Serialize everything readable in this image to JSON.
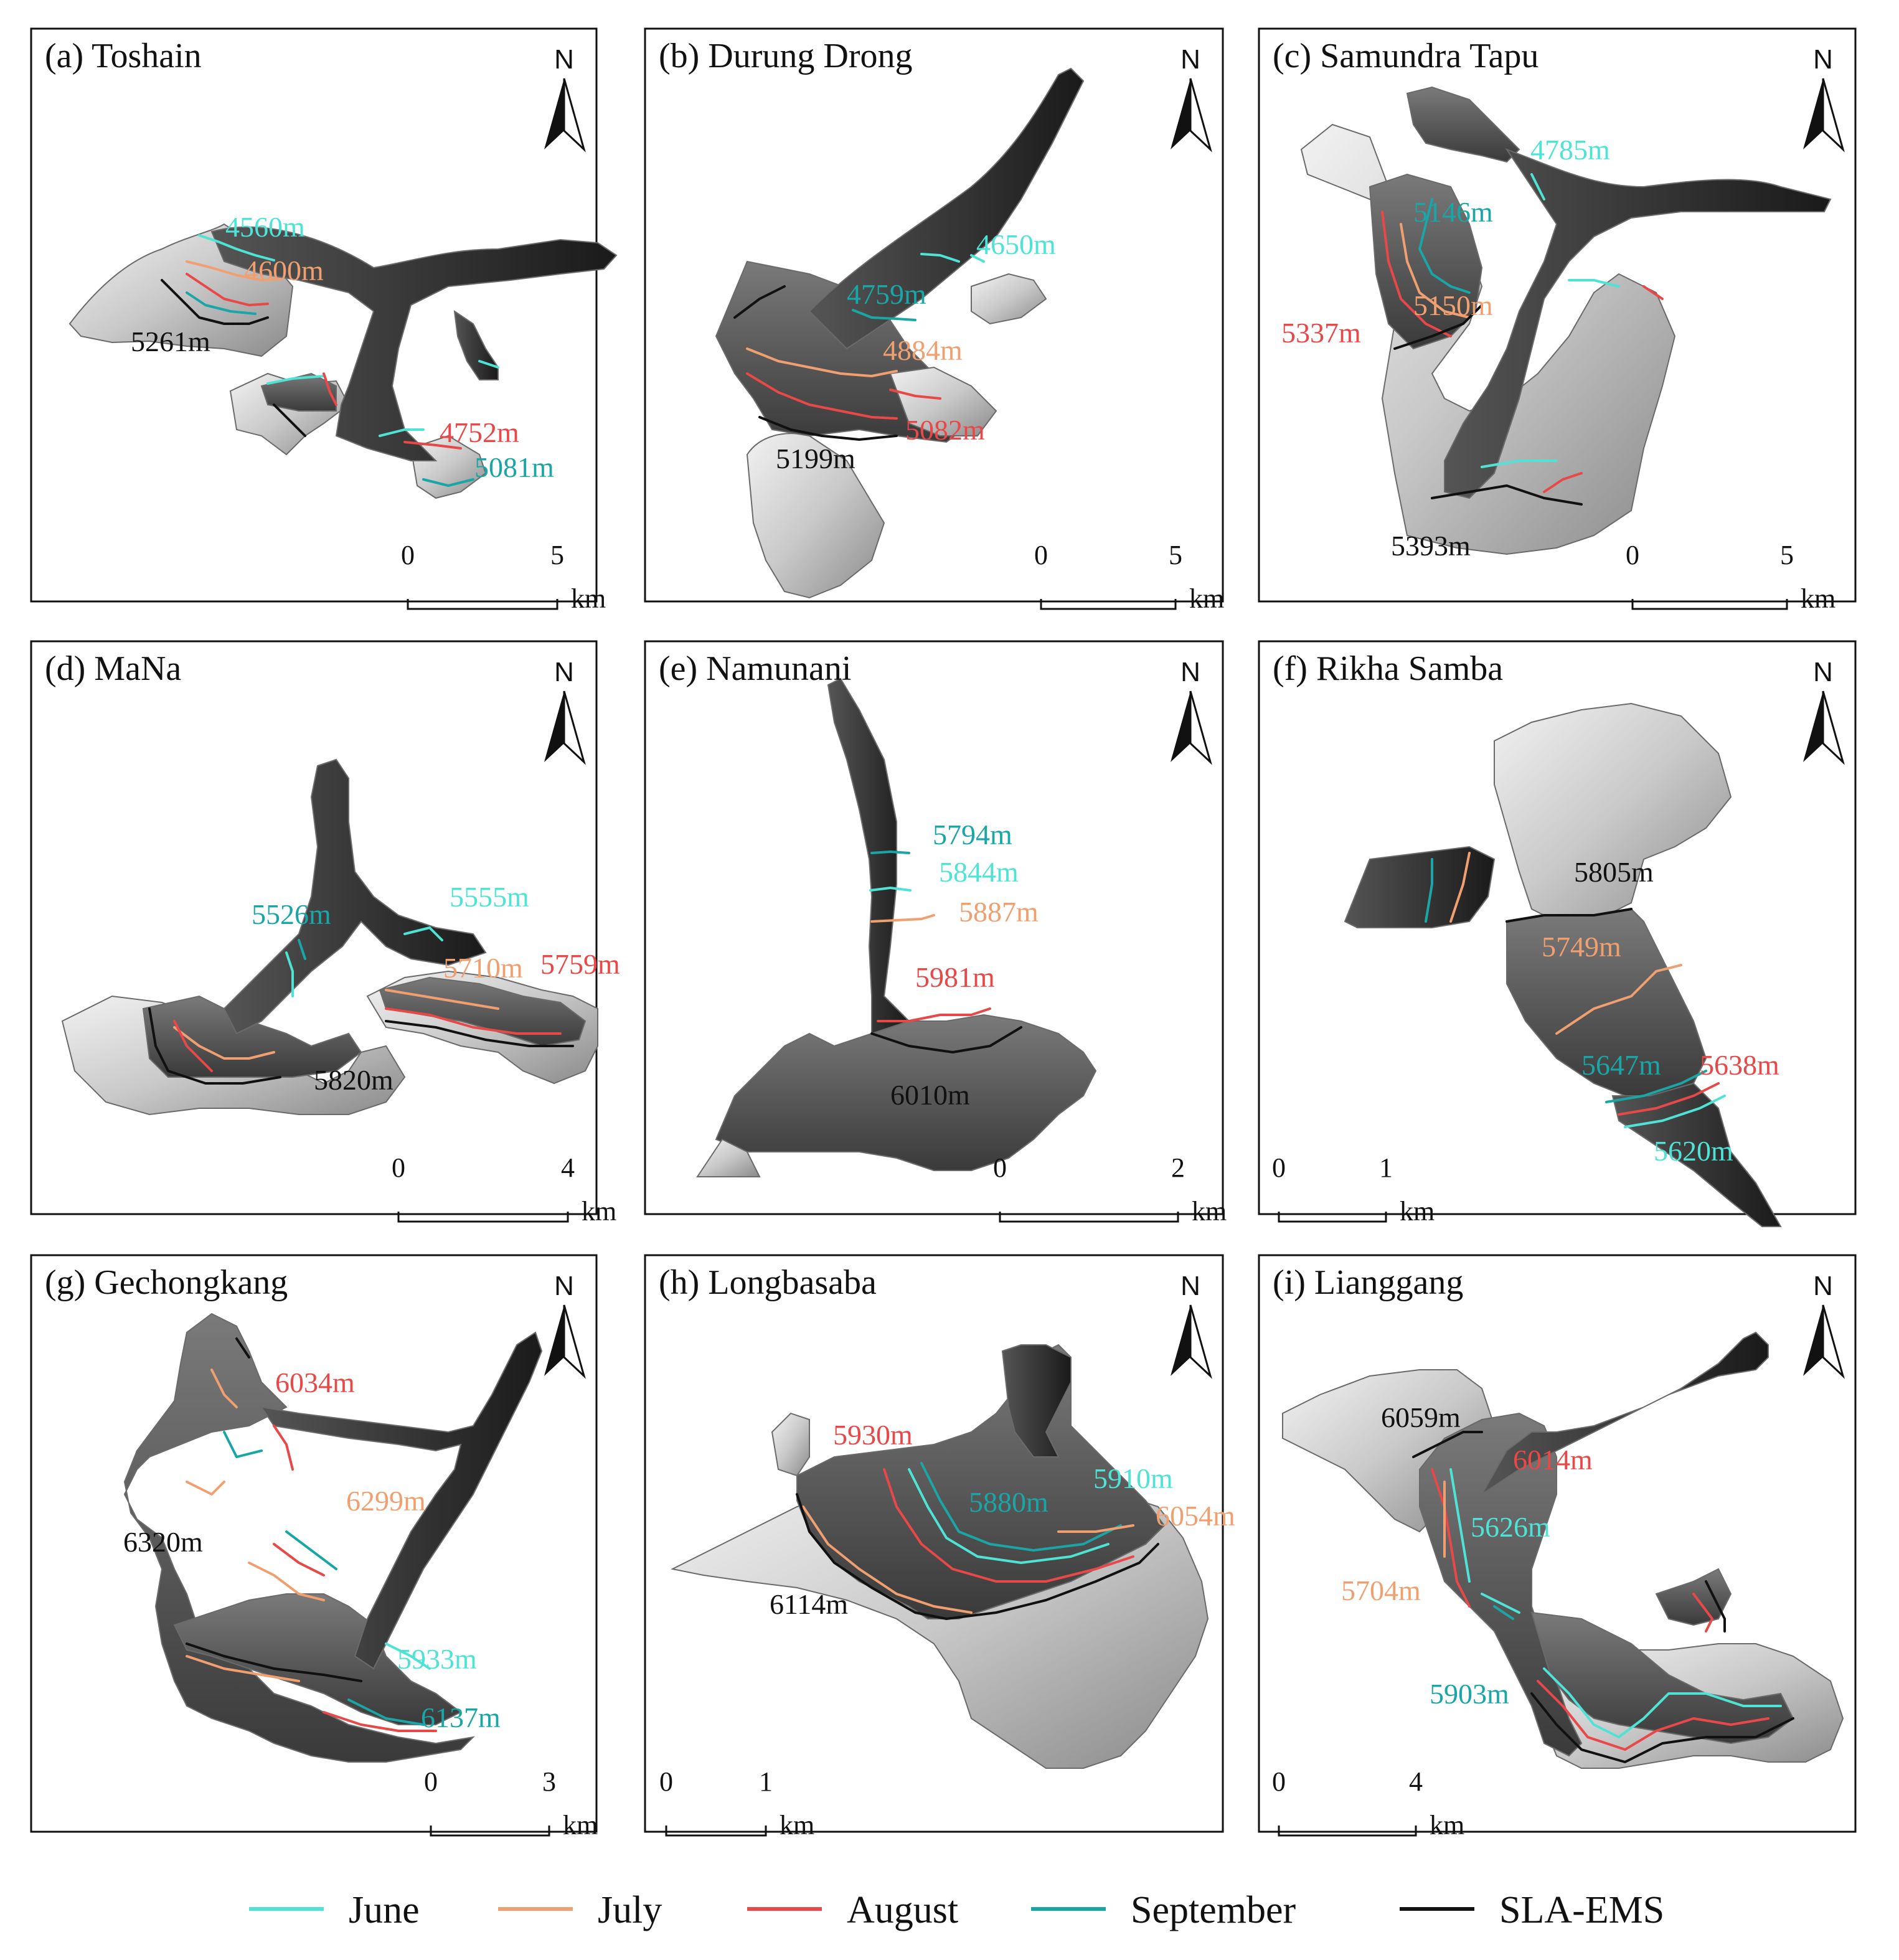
{
  "colors": {
    "June": "#4fe3d6",
    "July": "#f0a070",
    "August": "#e84848",
    "September": "#1aa6a6",
    "SLA-EMS": "#111111"
  },
  "north_label": "N",
  "scale_unit": "km",
  "legend": [
    {
      "label": "June",
      "color": "#4fe3d6"
    },
    {
      "label": "July",
      "color": "#f0a070"
    },
    {
      "label": "August",
      "color": "#e84848"
    },
    {
      "label": "September",
      "color": "#1aa6a6"
    },
    {
      "label": "SLA-EMS",
      "color": "#111111"
    }
  ],
  "panels": [
    {
      "title": "(a) Toshain",
      "scale": [
        "0",
        "5"
      ],
      "labels": [
        {
          "text": "4560m",
          "series": "June"
        },
        {
          "text": "4600m",
          "series": "July"
        },
        {
          "text": "5261m",
          "series": "SLA-EMS"
        },
        {
          "text": "4752m",
          "series": "August"
        },
        {
          "text": "5081m",
          "series": "September"
        }
      ]
    },
    {
      "title": "(b) Durung Drong",
      "scale": [
        "0",
        "5"
      ],
      "labels": [
        {
          "text": "4650m",
          "series": "June"
        },
        {
          "text": "4759m",
          "series": "September"
        },
        {
          "text": "4884m",
          "series": "July"
        },
        {
          "text": "5082m",
          "series": "August"
        },
        {
          "text": "5199m",
          "series": "SLA-EMS"
        }
      ]
    },
    {
      "title": "(c) Samundra Tapu",
      "scale": [
        "0",
        "5"
      ],
      "labels": [
        {
          "text": "4785m",
          "series": "June"
        },
        {
          "text": "5146m",
          "series": "September"
        },
        {
          "text": "5150m",
          "series": "July"
        },
        {
          "text": "5337m",
          "series": "August"
        },
        {
          "text": "5393m",
          "series": "SLA-EMS"
        }
      ]
    },
    {
      "title": "(d) MaNa",
      "scale": [
        "0",
        "4"
      ],
      "labels": [
        {
          "text": "5526m",
          "series": "September"
        },
        {
          "text": "5555m",
          "series": "June"
        },
        {
          "text": "5710m",
          "series": "July"
        },
        {
          "text": "5759m",
          "series": "August"
        },
        {
          "text": "5820m",
          "series": "SLA-EMS"
        }
      ]
    },
    {
      "title": "(e) Namunani",
      "scale": [
        "0",
        "2"
      ],
      "labels": [
        {
          "text": "5794m",
          "series": "September"
        },
        {
          "text": "5844m",
          "series": "June"
        },
        {
          "text": "5887m",
          "series": "July"
        },
        {
          "text": "5981m",
          "series": "August"
        },
        {
          "text": "6010m",
          "series": "SLA-EMS"
        }
      ]
    },
    {
      "title": "(f) Rikha Samba",
      "scale": [
        "0",
        "1"
      ],
      "labels": [
        {
          "text": "5805m",
          "series": "SLA-EMS"
        },
        {
          "text": "5749m",
          "series": "July"
        },
        {
          "text": "5647m",
          "series": "September"
        },
        {
          "text": "5638m",
          "series": "August"
        },
        {
          "text": "5620m",
          "series": "June"
        }
      ]
    },
    {
      "title": "(g) Gechongkang",
      "scale": [
        "0",
        "3"
      ],
      "labels": [
        {
          "text": "6034m",
          "series": "August"
        },
        {
          "text": "6299m",
          "series": "July"
        },
        {
          "text": "6320m",
          "series": "SLA-EMS"
        },
        {
          "text": "5933m",
          "series": "June"
        },
        {
          "text": "6137m",
          "series": "September"
        }
      ]
    },
    {
      "title": "(h) Longbasaba",
      "scale": [
        "0",
        "1"
      ],
      "labels": [
        {
          "text": "5930m",
          "series": "August"
        },
        {
          "text": "5910m",
          "series": "June"
        },
        {
          "text": "5880m",
          "series": "September"
        },
        {
          "text": "6054m",
          "series": "July"
        },
        {
          "text": "6114m",
          "series": "SLA-EMS"
        }
      ]
    },
    {
      "title": "(i) Lianggang",
      "scale": [
        "0",
        "4"
      ],
      "labels": [
        {
          "text": "6059m",
          "series": "SLA-EMS"
        },
        {
          "text": "6014m",
          "series": "August"
        },
        {
          "text": "5626m",
          "series": "June"
        },
        {
          "text": "5704m",
          "series": "July"
        },
        {
          "text": "5903m",
          "series": "September"
        }
      ]
    }
  ]
}
